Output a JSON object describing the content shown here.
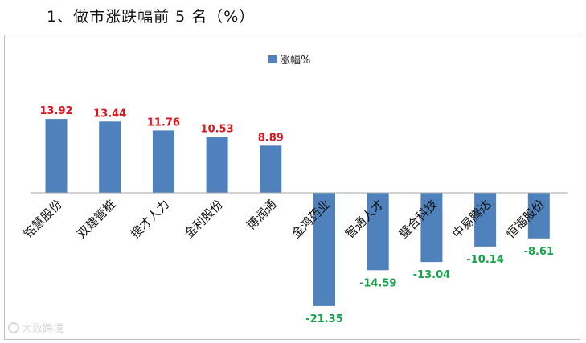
{
  "heading": "1、做市涨跌幅前 5 名（%）",
  "watermark": "大数跨境",
  "colors": {
    "bar": "#4f81bd",
    "positive_label": "#d9161c",
    "negative_label": "#16a34a",
    "axis": "#a6a6a6"
  },
  "chart_data": {
    "type": "bar",
    "title": "",
    "xlabel": "",
    "ylabel": "",
    "legend": {
      "entries": [
        "涨幅%"
      ],
      "placement": "top-center"
    },
    "grid": false,
    "ylim": [
      -25,
      20
    ],
    "categories": [
      "铭慧股份",
      "双建管桩",
      "搜才人力",
      "金利股份",
      "博润通",
      "金鸿药业",
      "智通人才",
      "璧合科技",
      "中易腾达",
      "恒福股份"
    ],
    "series": [
      {
        "name": "涨幅%",
        "values": [
          13.92,
          13.44,
          11.76,
          10.53,
          8.89,
          -21.35,
          -14.59,
          -13.04,
          -10.14,
          -8.61
        ]
      }
    ],
    "data_labels": [
      "13.92",
      "13.44",
      "11.76",
      "10.53",
      "8.89",
      "-21.35",
      "-14.59",
      "-13.04",
      "-10.14",
      "-8.61"
    ]
  }
}
